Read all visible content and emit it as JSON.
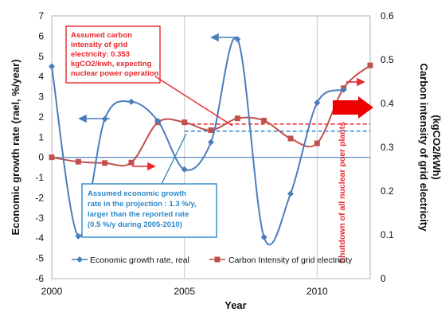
{
  "chart_data": {
    "type": "line",
    "title": "",
    "xlabel": "Year",
    "ylabel": "Economic growth rate (rael, %/year)",
    "y2label_line1": "Carbon intensity of grid electricity",
    "y2label_line2": "(kgCO2/kWh)",
    "xlim": [
      2000,
      2012
    ],
    "ylim": [
      -6,
      7
    ],
    "y2lim": [
      0,
      0.6
    ],
    "x_ticks": [
      2000,
      2005,
      2010
    ],
    "y_ticks": [
      -6,
      -5,
      -4,
      -3,
      -2,
      -1,
      0,
      1,
      2,
      3,
      4,
      5,
      6,
      7
    ],
    "y2_ticks": [
      "0",
      "0.1",
      "0.2",
      "0.3",
      "0.4",
      "0.5",
      "0.6"
    ],
    "grid": "vertical lines at 2005 and 2010, horizontal line at 0",
    "legend_position": "bottom",
    "series": [
      {
        "name": "Economic growth rate, real",
        "axis": "left",
        "color": "#4a7ebb",
        "marker": "diamond",
        "x": [
          2000,
          2001,
          2002,
          2003,
          2004,
          2005,
          2006,
          2007,
          2008,
          2009,
          2010,
          2011
        ],
        "values": [
          4.5,
          -3.9,
          1.9,
          2.75,
          1.8,
          -0.6,
          0.75,
          5.85,
          -3.95,
          -1.8,
          2.7,
          3.35
        ]
      },
      {
        "name": "Carbon Intensity of grid electricity",
        "axis": "right",
        "color": "#c0504d",
        "marker": "square",
        "x": [
          2000,
          2001,
          2002,
          2003,
          2004,
          2005,
          2006,
          2007,
          2008,
          2009,
          2010,
          2011,
          2012
        ],
        "values": [
          0.277,
          0.267,
          0.264,
          0.265,
          0.357,
          0.357,
          0.339,
          0.366,
          0.361,
          0.32,
          0.309,
          0.435,
          0.487
        ]
      }
    ],
    "annotations": {
      "carbon_assumption": [
        "Assumed carbon",
        "intensity of grid",
        "electricity: 0.353",
        "kgCO2/kwh,  expecting",
        "nuclear power operation"
      ],
      "growth_assumption": [
        "Assumed  economic growth",
        "rate in the projection : 1.3 %/y,",
        "larger than the reported rate",
        "(0.5 %/y during 2005-2010)"
      ],
      "shutdown_label": "Shutdown of all nuclear poer plants"
    },
    "projection_lines": {
      "carbon_intensity_kgco2_per_kwh": 0.353,
      "growth_rate_percent_per_year": 1.3
    }
  }
}
